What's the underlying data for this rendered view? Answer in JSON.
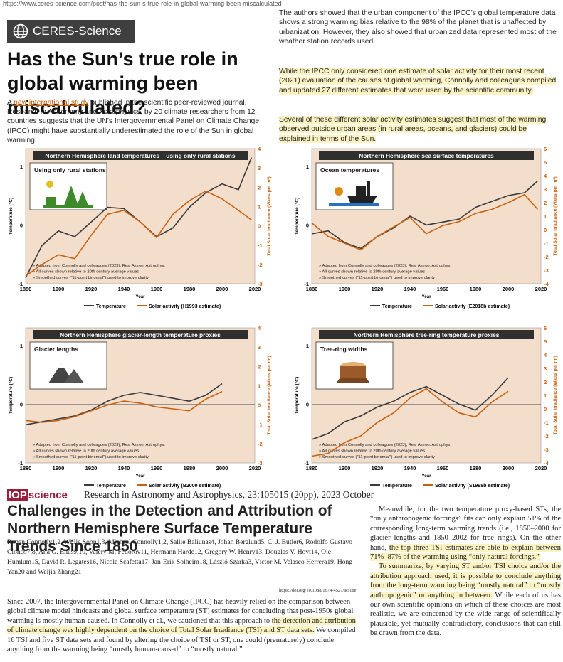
{
  "browser": {
    "url": "https://www.ceres-science.com/post/has-the-sun-s-true-role-in-global-warming-been-miscalculated"
  },
  "brand": {
    "name": "CERES-Science",
    "icon": "globe-icon"
  },
  "article": {
    "title": "Has the Sun’s true role in global warming been miscalculated?",
    "intro_pre": "A ",
    "intro_link": "new international study",
    "intro_post": " published in the scientific peer-reviewed journal, Research in Astronomy and Astrophysics, by 20 climate researchers from 12 countries suggests that the UN’s Intergovernmental Panel on Climate Change (IPCC) might have substantially underestimated the role of the Sun in global warming.",
    "p1": "The authors showed that the urban component of the IPCC’s global temperature data shows a strong warming bias relative to the 98% of the planet that is unaffected by urbanization. However, they also showed that urbanized data represented most of the weather station records used.",
    "p2": "While the IPCC only considered one estimate of solar activity for their most recent (2021) evaluation of the causes of global warming, Connolly and colleagues compiled and updated 27 different estimates that were used by the scientific community.",
    "p3": "Several of these different solar activity estimates suggest that most of the warming observed outside urban areas (in rural areas, oceans, and glaciers) could be explained in terms of the Sun."
  },
  "common": {
    "y_left": "Temperature (°C)",
    "y_right": "Total Solar Irradiance (Watts per m²)",
    "x_label": "Year",
    "temp_legend": "Temperature",
    "note1": "» Adapted from Connolly and colleagues (2023), Res. Astron. Astrophys.",
    "note2": "» All curves shown relative to 20th century average values",
    "note3": "» Smoothed curves (\"11-point binomial\") used to improve clarity"
  },
  "chart_data": [
    {
      "type": "line",
      "title": "Northern Hemisphere land temperatures – using only rural stations",
      "inset": "Using only rural stations",
      "icon": "rural-landscape-icon",
      "solar_legend": "Solar activity (H1993 estimate)",
      "x": [
        1880,
        1890,
        1900,
        1910,
        1920,
        1930,
        1940,
        1950,
        1960,
        1970,
        1980,
        1990,
        2000,
        2010,
        2018
      ],
      "xticks": [
        1880,
        1900,
        1920,
        1940,
        1960,
        1980,
        2000,
        2020
      ],
      "xlim": [
        1880,
        2020
      ],
      "ylim": [
        -1,
        1.3
      ],
      "yticks": [
        -1,
        0,
        1
      ],
      "y2lim": [
        -3,
        4
      ],
      "y2ticks": [
        -3,
        -2,
        -1,
        0,
        1,
        2,
        3,
        4
      ],
      "series": [
        {
          "name": "Temperature",
          "values": [
            -0.9,
            -0.35,
            -0.1,
            -0.2,
            0.05,
            0.3,
            0.28,
            0.05,
            -0.2,
            -0.05,
            0.3,
            0.55,
            0.7,
            0.6,
            1.15
          ]
        },
        {
          "name": "Solar activity (H1993 estimate)",
          "values": [
            -2.6,
            -2.0,
            -1.5,
            -1.7,
            -0.5,
            0.6,
            0.8,
            0.2,
            -0.6,
            0.6,
            1.3,
            1.8,
            1.4,
            0.8,
            0.3
          ]
        }
      ]
    },
    {
      "type": "line",
      "title": "Northern Hemisphere sea surface temperatures",
      "inset": "Ocean temperatures",
      "icon": "ship-sun-icon",
      "solar_legend": "Solar activity (E2018b estimate)",
      "x": [
        1880,
        1890,
        1900,
        1910,
        1920,
        1930,
        1940,
        1950,
        1960,
        1970,
        1980,
        1990,
        2000,
        2010,
        2018
      ],
      "xticks": [
        1880,
        1900,
        1920,
        1940,
        1960,
        1980,
        2000,
        2020
      ],
      "xlim": [
        1880,
        2020
      ],
      "ylim": [
        -1,
        1.3
      ],
      "yticks": [
        -1,
        0,
        1
      ],
      "y2lim": [
        -4,
        6
      ],
      "y2ticks": [
        -4,
        -3,
        -2,
        -1,
        0,
        1,
        2,
        3,
        4,
        5,
        6
      ],
      "series": [
        {
          "name": "Temperature",
          "values": [
            -0.15,
            -0.1,
            -0.3,
            -0.4,
            -0.2,
            -0.05,
            0.15,
            0.0,
            0.05,
            0.1,
            0.3,
            0.4,
            0.5,
            0.55,
            0.75
          ]
        },
        {
          "name": "Solar activity (E2018b estimate)",
          "values": [
            0.5,
            -0.5,
            -1.0,
            -1.5,
            -0.5,
            0.2,
            0.9,
            -0.3,
            0.3,
            0.6,
            1.2,
            1.5,
            2.0,
            2.6,
            1.5
          ]
        }
      ]
    },
    {
      "type": "line",
      "title": "Northern Hemisphere glacier-length temperature proxies",
      "inset": "Glacier lengths",
      "icon": "mountain-icon",
      "solar_legend": "Solar activity (B2000 estimate)",
      "x": [
        1880,
        1890,
        1900,
        1910,
        1920,
        1930,
        1940,
        1950,
        1960,
        1970,
        1980,
        1990,
        2000
      ],
      "xticks": [
        1880,
        1900,
        1920,
        1940,
        1960,
        1980,
        2000,
        2020
      ],
      "xlim": [
        1880,
        2020
      ],
      "ylim": [
        -1,
        1.3
      ],
      "yticks": [
        -1,
        0,
        1
      ],
      "y2lim": [
        -3,
        4
      ],
      "y2ticks": [
        -3,
        -2,
        -1,
        0,
        1,
        2,
        3,
        4
      ],
      "series": [
        {
          "name": "Temperature",
          "values": [
            -0.35,
            -0.3,
            -0.25,
            -0.2,
            -0.1,
            0.05,
            0.15,
            0.2,
            0.15,
            0.1,
            0.05,
            0.15,
            0.35
          ]
        },
        {
          "name": "Solar activity (B2000 estimate)",
          "values": [
            -0.8,
            -0.9,
            -0.8,
            -0.6,
            -0.3,
            0.0,
            0.2,
            0.1,
            -0.1,
            -0.2,
            -0.3,
            0.3,
            0.7
          ]
        }
      ]
    },
    {
      "type": "line",
      "title": "Northern Hemisphere tree-ring temperature proxies",
      "inset": "Tree-ring widths",
      "icon": "tree-stump-icon",
      "solar_legend": "Solar activity (S1998b estimate)",
      "x": [
        1880,
        1890,
        1900,
        1910,
        1920,
        1930,
        1940,
        1950,
        1960,
        1970,
        1980,
        1990,
        2000
      ],
      "xticks": [
        1880,
        1900,
        1920,
        1940,
        1960,
        1980,
        2000,
        2020
      ],
      "xlim": [
        1880,
        2020
      ],
      "ylim": [
        -1,
        1.3
      ],
      "yticks": [
        -1,
        0,
        1
      ],
      "y2lim": [
        -4,
        6
      ],
      "y2ticks": [
        -4,
        -3,
        -2,
        -1,
        0,
        1,
        2,
        3,
        4,
        5,
        6
      ],
      "series": [
        {
          "name": "Temperature",
          "values": [
            -0.6,
            -0.5,
            -0.3,
            -0.2,
            -0.05,
            0.05,
            0.2,
            0.3,
            0.15,
            0.0,
            -0.1,
            0.15,
            0.45
          ]
        },
        {
          "name": "Solar activity (S1998b estimate)",
          "values": [
            -3.5,
            -3.3,
            -2.5,
            -2.0,
            -1.0,
            -0.3,
            0.8,
            1.5,
            0.5,
            -0.3,
            -0.6,
            0.5,
            1.3
          ]
        }
      ]
    }
  ],
  "paper": {
    "publisher_a": "IOP",
    "publisher_b": "science",
    "journal": "Research in Astronomy and Astrophysics, 23:105015 (20pp), 2023 October",
    "title": "Challenges in the Detection and Attribution of Northern Hemisphere Surface Temperature Trends Since 1850",
    "authors": "Ronan Connolly1,2, Willie Soon1,3, Michael Connolly1,2, Sallie Baliunas4, Johan Berglund5, C. J. Butler6, Rodolfo Gustavo Cionco7,8, Ana G. Elias9,10, Valery M. Fedorov11, Hermann Harde12, Gregory W. Henry13, Douglas V. Hoyt14, Ole Humlum15, David R. Legates16, Nicola Scafetta17, Jan-Erik Solheim18, László Szarka3, Víctor M. Velasco Herrera19, Hong Yan20 and Weijia Zhang21",
    "doi": "https://doi.org/10.1088/1674-4527/acf18e",
    "abstract_a": "Since 2007, the Intergovernmental Panel on Climate Change (IPCC) has heavily relied on the comparison between global climate model hindcasts and global surface temperature (ST) estimates for concluding that post-1950s global warming is mostly human-caused. In Connolly et al., we cautioned that this approach to ",
    "abstract_hl": "the detection and attribution of climate change was highly dependent on the choice of Total Solar Irradiance (TSI) and ST data sets.",
    "abstract_b": " We compiled 16 TSI and five ST data sets and found by altering the choice of TSI or ST, one could (prematurely) conclude anything from the warming being “mostly human-caused” to “mostly natural.”",
    "r1a": "Meanwhile, for the two temperature proxy-based STs, the “only anthropogenic forcings” fits can only explain 51% of the corresponding long-term warming trends (i.e., 1850–2000 for glacier lengths and 1850–2002 for tree rings). On the other hand, ",
    "r1hl": "the top three TSI estimates are able to explain between 71%–87% of the warming using “only natural forcings.”",
    "r2hl": "To summarize, by varying ST and/or TSI choice and/or the attribution approach used, it is possible to conclude anything from the long-term warming being “mostly natural” to “mostly anthropogenic” or anything in between.",
    "r2b": " While each of us has our own scientific opinions on which of these choices are most realistic, we are concerned by the wide range of scientifically plausible, yet mutually contradictory, conclusions that can still be drawn from the data."
  },
  "colors": {
    "temp": "#3a3a3a",
    "solar": "#c8610e",
    "plot_bg": "#f3ddcb",
    "title_bg": "#2f2f2f",
    "highlight": "#fbf3c4"
  }
}
